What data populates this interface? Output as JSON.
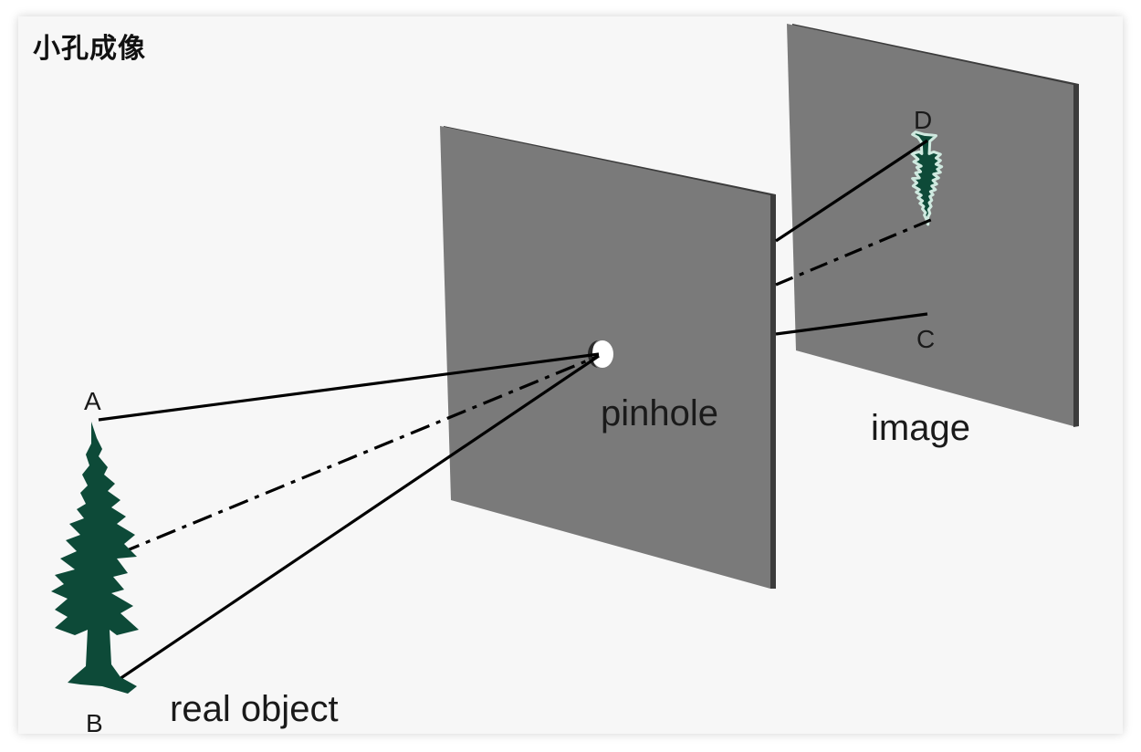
{
  "title": "小孔成像",
  "labels": {
    "pinhole": "pinhole",
    "image": "image",
    "real_object": "real object",
    "point_a": "A",
    "point_b": "B",
    "point_c": "C",
    "point_d": "D"
  },
  "colors": {
    "screen": "#7a7a7a",
    "screen_edge": "#3c3c3c",
    "tree": "#0d4a38",
    "ray": "#000000",
    "background": "#f7f7f7"
  },
  "icons": {
    "object_tree": "evergreen-tree-icon",
    "image_tree": "inverted-tree-icon",
    "pinhole": "hole-icon"
  }
}
